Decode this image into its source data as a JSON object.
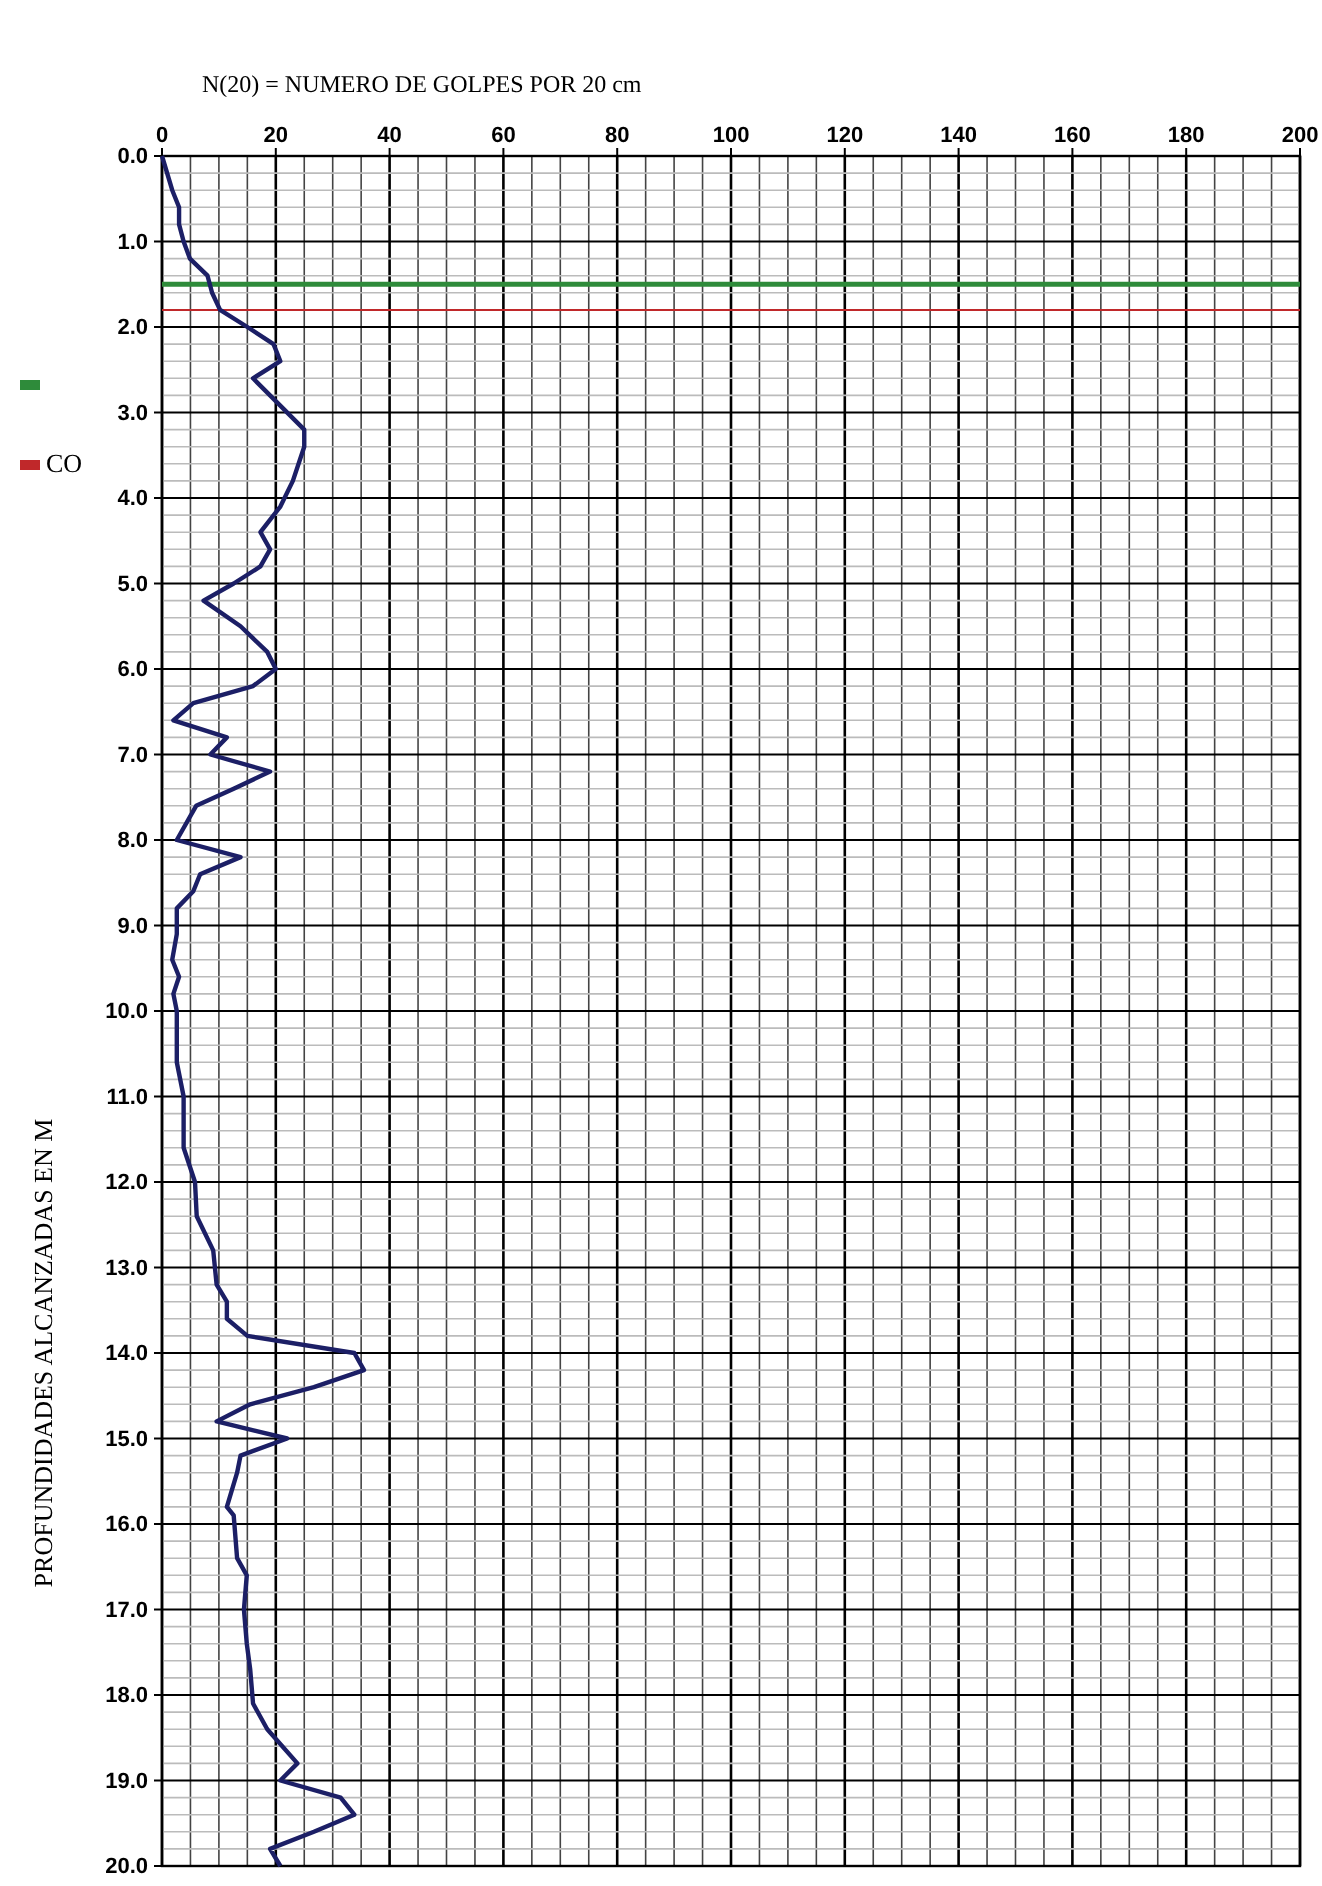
{
  "chart_data": {
    "type": "line",
    "xlabel": "N(20) = NUMERO DE GOLPES POR 20 cm",
    "ylabel": "PROFUNDIDADES ALCANZADAS EN M",
    "xlim": [
      0,
      200
    ],
    "xticks": [
      0,
      20,
      40,
      60,
      80,
      100,
      120,
      140,
      160,
      180,
      200
    ],
    "ylim": [
      20,
      0
    ],
    "yticks": [
      {
        "value": 0,
        "label": "0.0"
      },
      {
        "value": 1,
        "label": "1.0"
      },
      {
        "value": 2,
        "label": "2.0"
      },
      {
        "value": 3,
        "label": "3.0"
      },
      {
        "value": 4,
        "label": "4.0"
      },
      {
        "value": 5,
        "label": "5.0"
      },
      {
        "value": 6,
        "label": "6.0"
      },
      {
        "value": 7,
        "label": "7.0"
      },
      {
        "value": 8,
        "label": "8.0"
      },
      {
        "value": 9,
        "label": "9.0"
      },
      {
        "value": 10,
        "label": "10.0"
      },
      {
        "value": 11,
        "label": "11.0"
      },
      {
        "value": 12,
        "label": "12.0"
      },
      {
        "value": 13,
        "label": "13.0"
      },
      {
        "value": 14,
        "label": "14.0"
      },
      {
        "value": 15,
        "label": "15.0"
      },
      {
        "value": 16,
        "label": "16.0"
      },
      {
        "value": 17,
        "label": "17.0"
      },
      {
        "value": 18,
        "label": "18.0"
      },
      {
        "value": 19,
        "label": "19.0"
      },
      {
        "value": 20,
        "label": "20.0"
      }
    ],
    "grid": true,
    "marker": "none",
    "line_style": "solid",
    "series": [
      {
        "color": "#1c1f66",
        "x": [
          0,
          1.8,
          3,
          3,
          3.8,
          4.9,
          8,
          8.8,
          10.2,
          15,
          19.6,
          20.8,
          16,
          25,
          25,
          23,
          20.8,
          17.3,
          19,
          17.3,
          12.6,
          7.3,
          13.8,
          18.5,
          20,
          16,
          5.5,
          2,
          11.4,
          8.5,
          19,
          12.6,
          6,
          2.6,
          13.8,
          6.7,
          5.5,
          2.6,
          2.6,
          1.8,
          3,
          2,
          2.6,
          2.6,
          3.8,
          3.8,
          5.8,
          6.1,
          9,
          9.6,
          11.4,
          11.4,
          15,
          33.8,
          35.5,
          26.7,
          15.5,
          9.6,
          22,
          13.8,
          13.2,
          11.4,
          12.6,
          13.2,
          14.9,
          14.4,
          14.9,
          15.5,
          16,
          18.5,
          23.8,
          20.8,
          31.4,
          33.8,
          26.7,
          19,
          20.8
        ],
        "values": [
          0,
          0.4,
          0.6,
          0.8,
          1.0,
          1.2,
          1.4,
          1.6,
          1.8,
          2.0,
          2.2,
          2.4,
          2.6,
          3.2,
          3.4,
          3.8,
          4.1,
          4.4,
          4.6,
          4.8,
          5.0,
          5.2,
          5.5,
          5.8,
          6.0,
          6.2,
          6.4,
          6.6,
          6.8,
          7.0,
          7.2,
          7.4,
          7.6,
          8.0,
          8.2,
          8.4,
          8.6,
          8.8,
          9.1,
          9.4,
          9.6,
          9.8,
          10.0,
          10.6,
          11.0,
          11.6,
          12.0,
          12.4,
          12.8,
          13.2,
          13.4,
          13.6,
          13.8,
          14.0,
          14.2,
          14.4,
          14.6,
          14.8,
          15.0,
          15.2,
          15.4,
          15.8,
          15.9,
          16.4,
          16.6,
          17.0,
          17.4,
          17.7,
          18.1,
          18.4,
          18.8,
          19.0,
          19.2,
          19.4,
          19.6,
          19.8,
          20.0
        ]
      }
    ],
    "ref_lines": [
      {
        "axis": "y",
        "value": 1.5,
        "label": null,
        "color": "#2e8b3a"
      },
      {
        "axis": "y",
        "value": 1.8,
        "label": "CO",
        "color": "#c0282a"
      }
    ]
  }
}
